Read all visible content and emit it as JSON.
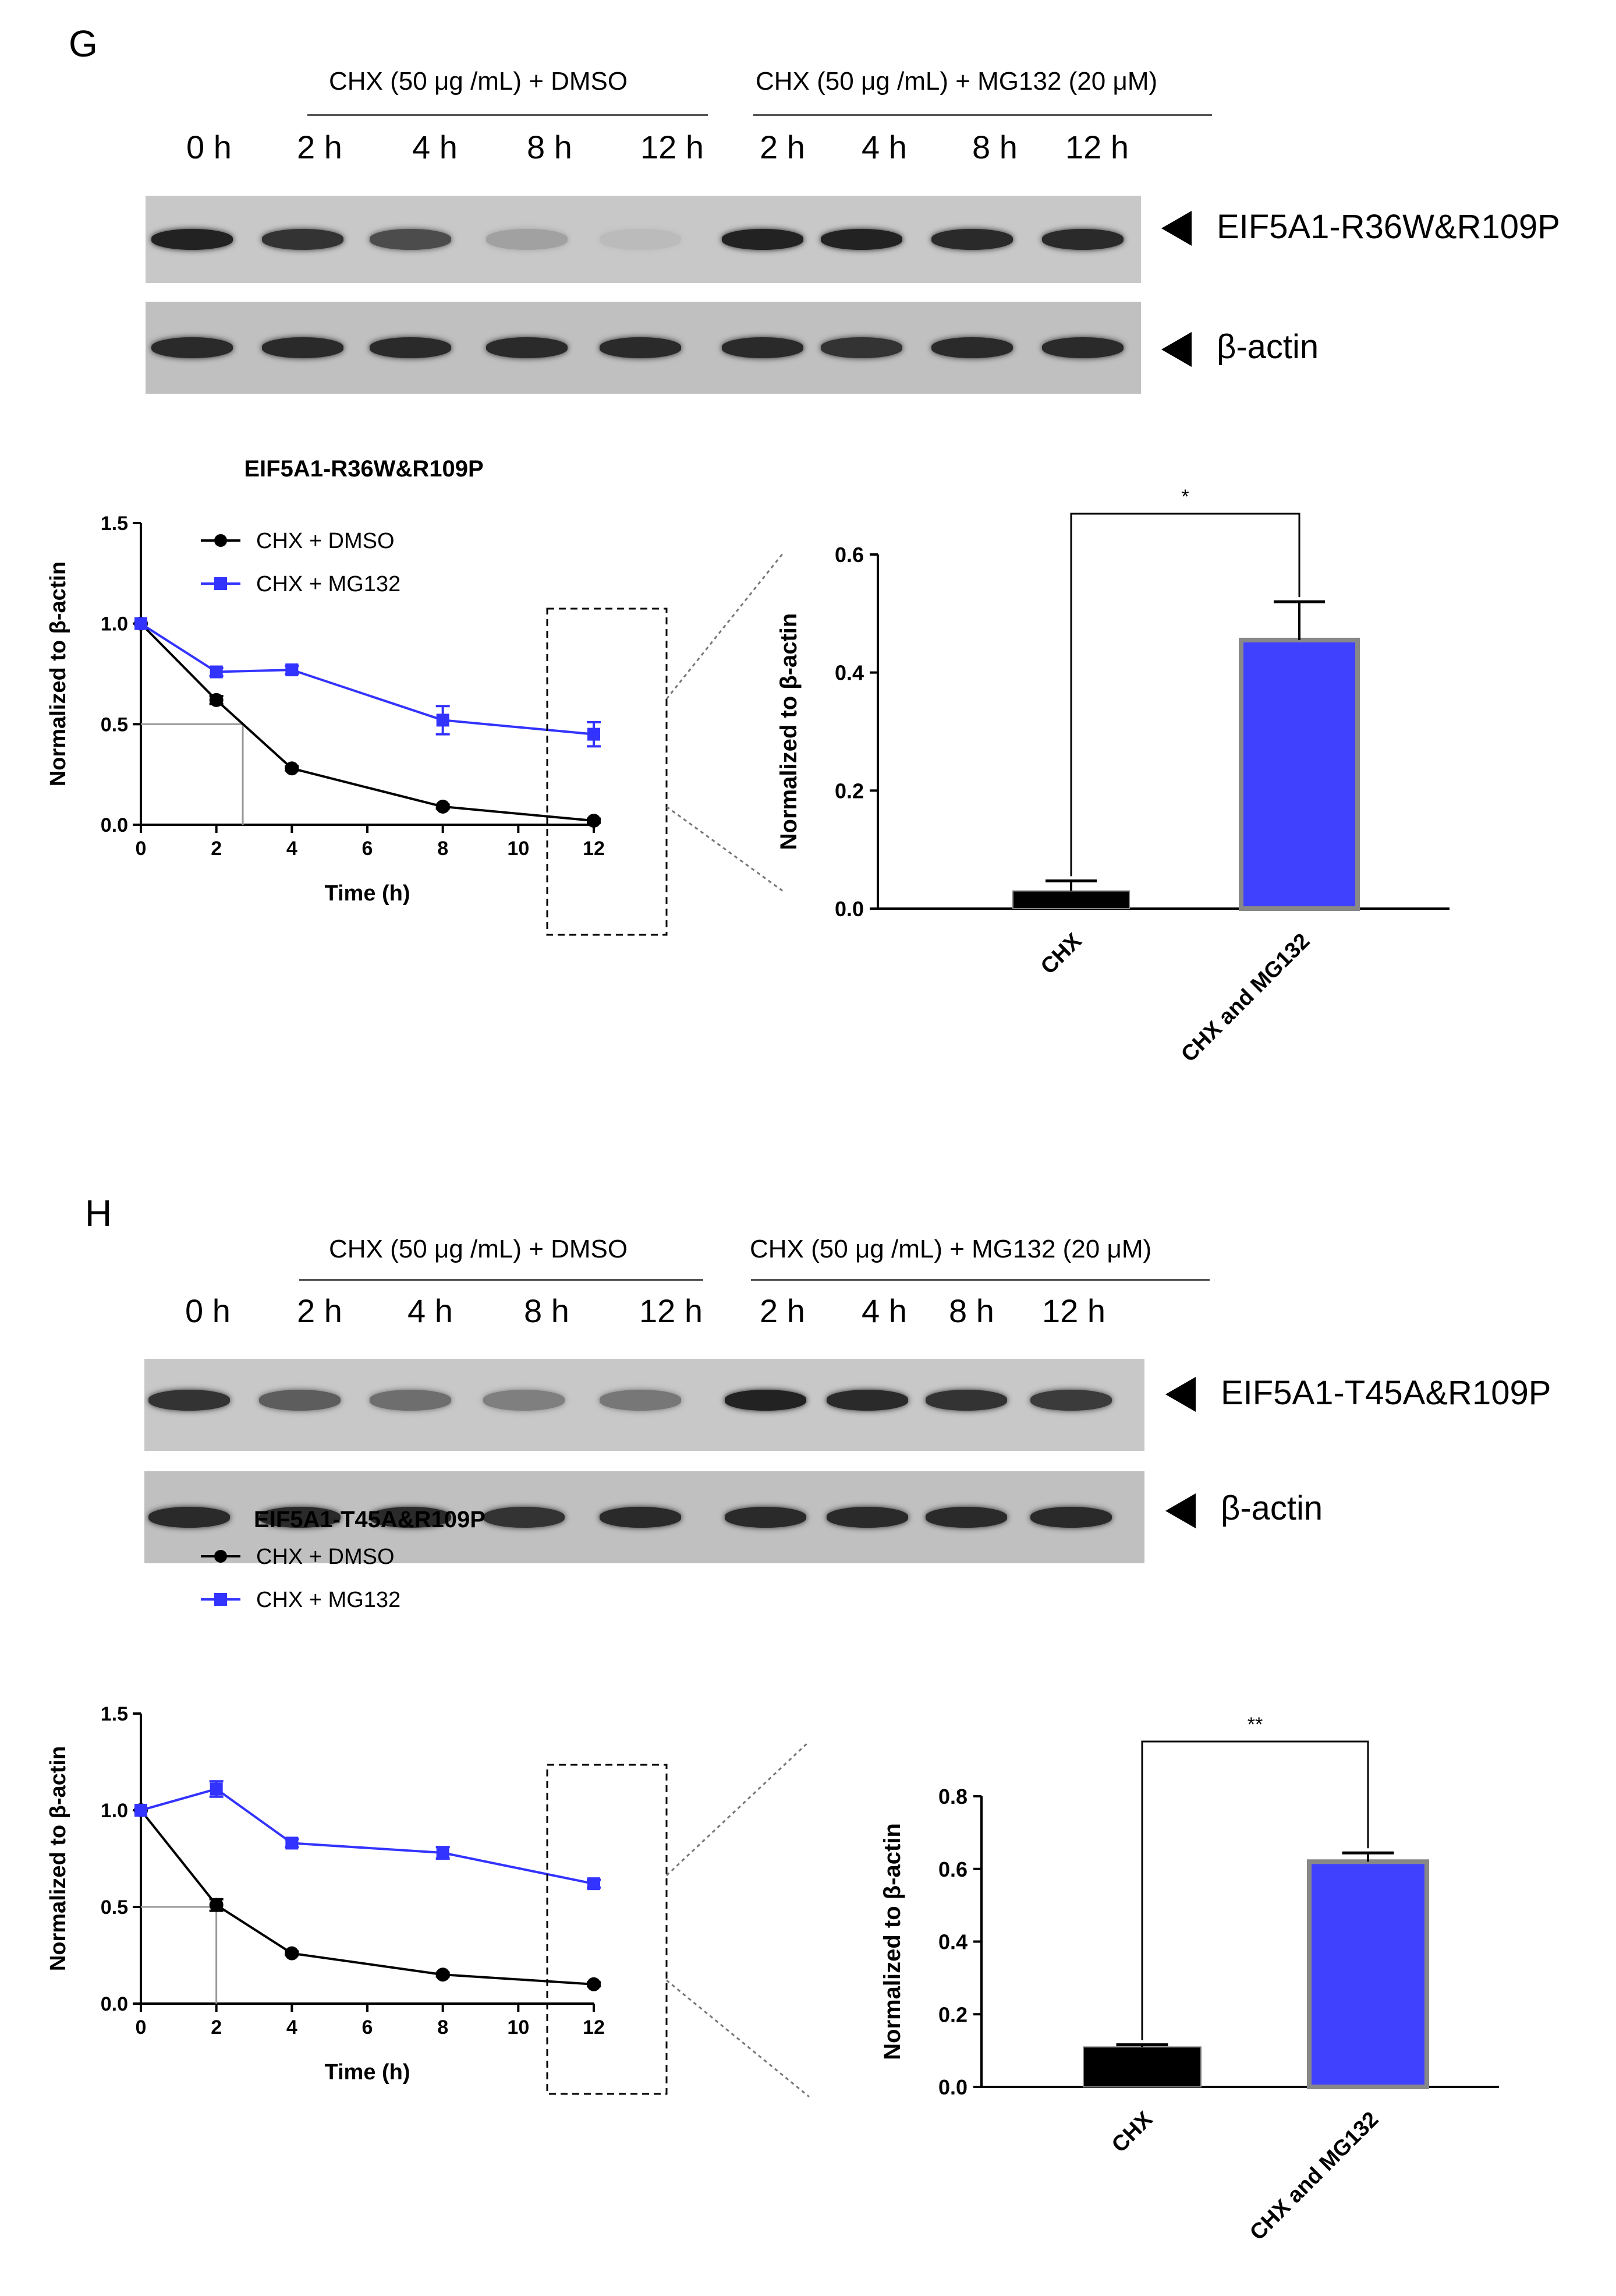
{
  "panels": [
    {
      "letter": "G",
      "cond_dmso": "CHX (50 μg /mL) + DMSO",
      "cond_mg132": "CHX (50 μg /mL) + MG132 (20 μM)",
      "timepoints": [
        "0 h",
        "2 h",
        "4 h",
        "8 h",
        "12 h",
        "2 h",
        "4 h",
        "8 h",
        "12 h"
      ],
      "band_intensity": [
        0.95,
        0.85,
        0.7,
        0.2,
        0.05,
        0.95,
        0.95,
        0.9,
        0.9
      ],
      "actin_intensity": [
        0.9,
        0.9,
        0.9,
        0.9,
        0.9,
        0.9,
        0.85,
        0.9,
        0.9
      ],
      "protein_label": "EIF5A1-R36W&R109P",
      "actin_label": "β-actin"
    },
    {
      "letter": "H",
      "cond_dmso": "CHX (50 μg /mL) + DMSO",
      "cond_mg132": "CHX (50 μg /mL) + MG132 (20 μM)",
      "timepoints": [
        "0 h",
        "2 h",
        "4 h",
        "8 h",
        "12 h",
        "2 h",
        "4 h",
        "8 h",
        "12 h"
      ],
      "band_intensity": [
        0.85,
        0.6,
        0.5,
        0.4,
        0.45,
        0.95,
        0.9,
        0.85,
        0.8
      ],
      "actin_intensity": [
        0.9,
        0.9,
        0.9,
        0.85,
        0.9,
        0.9,
        0.9,
        0.9,
        0.9
      ],
      "protein_label": "EIF5A1-T45A&R109P",
      "actin_label": "β-actin"
    }
  ],
  "chart_data": [
    {
      "type": "line",
      "title": "EIF5A1-R36W&R109P",
      "xlabel": "Time (h)",
      "ylabel": "Normalized to β-actin",
      "x": [
        0,
        2,
        4,
        8,
        12
      ],
      "xlim": [
        0,
        12
      ],
      "ylim": [
        0,
        1.5
      ],
      "xticks": [
        "0",
        "2",
        "4",
        "6",
        "8",
        "10",
        "12"
      ],
      "yticks": [
        "0.0",
        "0.5",
        "1.0",
        "1.5"
      ],
      "half_life_x": 2.7,
      "series": [
        {
          "name": "CHX + DMSO",
          "color": "#000000",
          "marker": "circle",
          "values": [
            1.0,
            0.62,
            0.28,
            0.09,
            0.02
          ],
          "errors": [
            0,
            0.02,
            0.01,
            0.01,
            0.01
          ]
        },
        {
          "name": "CHX + MG132",
          "color": "#3333ff",
          "marker": "square",
          "values": [
            1.0,
            0.76,
            0.77,
            0.52,
            0.45
          ],
          "errors": [
            0,
            0.02,
            0.02,
            0.07,
            0.06
          ]
        }
      ]
    },
    {
      "type": "bar",
      "xlabel": "",
      "ylabel": "Normalized to β-actin",
      "categories": [
        "CHX",
        "CHX and MG132"
      ],
      "values": [
        0.03,
        0.455
      ],
      "errors": [
        0.017,
        0.065
      ],
      "colors": [
        "#000000",
        "#4040ff"
      ],
      "ylim": [
        0,
        0.6
      ],
      "yticks": [
        "0.0",
        "0.2",
        "0.4",
        "0.6"
      ],
      "significance": "*"
    },
    {
      "type": "line",
      "title": "EIF5A1-T45A&R109P",
      "xlabel": "Time (h)",
      "ylabel": "Normalized to β-actin",
      "x": [
        0,
        2,
        4,
        8,
        12
      ],
      "xlim": [
        0,
        12
      ],
      "ylim": [
        0,
        1.5
      ],
      "xticks": [
        "0",
        "2",
        "4",
        "6",
        "8",
        "10",
        "12"
      ],
      "yticks": [
        "0.0",
        "0.5",
        "1.0",
        "1.5"
      ],
      "half_life_x": 2.0,
      "series": [
        {
          "name": "CHX + DMSO",
          "color": "#000000",
          "marker": "circle",
          "values": [
            1.0,
            0.51,
            0.26,
            0.15,
            0.1
          ],
          "errors": [
            0,
            0.03,
            0.01,
            0.01,
            0.01
          ]
        },
        {
          "name": "CHX + MG132",
          "color": "#3333ff",
          "marker": "square",
          "values": [
            1.0,
            1.11,
            0.83,
            0.78,
            0.62
          ],
          "errors": [
            0,
            0.04,
            0.02,
            0.03,
            0.02
          ]
        }
      ]
    },
    {
      "type": "bar",
      "xlabel": "",
      "ylabel": "Normalized to β-actin",
      "categories": [
        "CHX",
        "CHX and MG132"
      ],
      "values": [
        0.11,
        0.62
      ],
      "errors": [
        0.006,
        0.024
      ],
      "colors": [
        "#000000",
        "#4040ff"
      ],
      "ylim": [
        0,
        0.8
      ],
      "yticks": [
        "0.0",
        "0.2",
        "0.4",
        "0.6",
        "0.8"
      ],
      "significance": "**"
    }
  ]
}
